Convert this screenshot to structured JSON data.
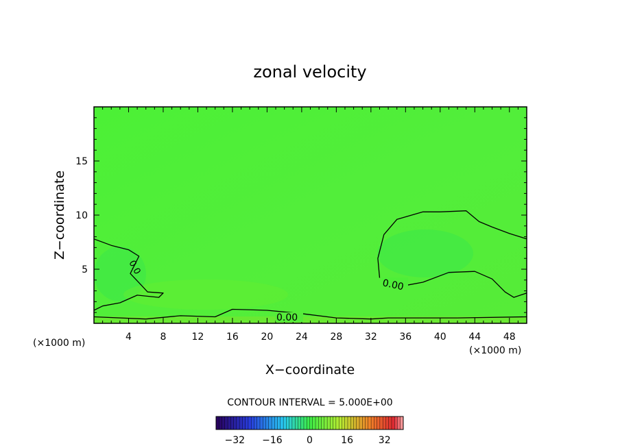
{
  "chart_data": {
    "type": "heatmap",
    "title": "zonal velocity",
    "xlabel": "X−coordinate",
    "ylabel": "Z−coordinate",
    "x_unit_left": "(×1000 m)",
    "x_unit_right": "(×1000 m)",
    "xlim": [
      0,
      50
    ],
    "ylim": [
      0,
      20
    ],
    "x_ticks": [
      4,
      8,
      12,
      16,
      20,
      24,
      28,
      32,
      36,
      40,
      44,
      48
    ],
    "y_ticks": [
      5,
      10,
      15
    ],
    "contour_interval_label": "CONTOUR INTERVAL = 5.000E+00",
    "contour_value_labels": [
      "0.0",
      "0.00",
      "0.00"
    ],
    "colorbar": {
      "range": [
        -40,
        40
      ],
      "ticks": [
        -32,
        -16,
        0,
        16,
        32
      ],
      "tick_labels": [
        "−32",
        "−16",
        "0",
        "16",
        "32"
      ]
    },
    "field_description": "Nearly uniform near-zero zonal velocity field (0 to about 3 m/s) shaded green across the domain.",
    "zero_contours": [
      {
        "x": [
          0,
          2,
          4,
          5.2,
          4.2,
          5.5,
          6.2,
          8,
          7.5,
          5,
          3,
          1,
          0
        ],
        "y": [
          7.8,
          7.2,
          6.8,
          6.2,
          4.6,
          3.5,
          2.9,
          2.8,
          2.4,
          2.6,
          1.9,
          1.6,
          1.2
        ]
      },
      {
        "x": [
          33,
          32.8,
          33.5,
          35,
          38,
          40,
          43,
          44.5,
          46,
          48,
          50
        ],
        "y": [
          4.2,
          6.0,
          8.2,
          9.6,
          10.3,
          10.3,
          10.4,
          9.4,
          8.9,
          8.3,
          7.8
        ]
      },
      {
        "x": [
          33.5,
          36,
          38,
          41,
          44,
          46,
          47.5,
          48.5,
          50
        ],
        "y": [
          3.8,
          3.5,
          3.8,
          4.7,
          4.8,
          4.1,
          2.9,
          2.4,
          2.8
        ]
      },
      {
        "x": [
          0,
          6,
          10,
          14,
          16,
          20,
          24,
          28,
          32,
          34,
          42,
          50
        ],
        "y": [
          0.6,
          0.4,
          0.7,
          0.6,
          1.3,
          1.2,
          0.9,
          0.5,
          0.4,
          0.5,
          0.5,
          0.6
        ]
      }
    ]
  }
}
